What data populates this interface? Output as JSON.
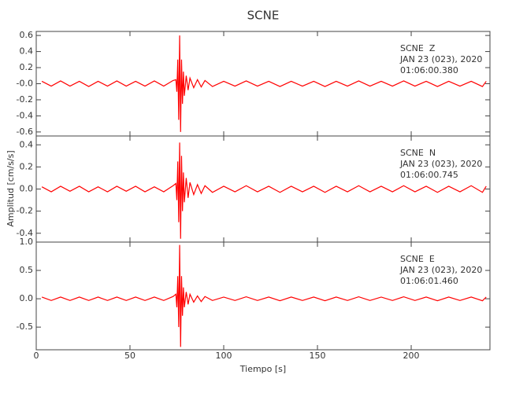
{
  "title": "SCNE",
  "x_label": "Tiempo [s]",
  "y_label": "Amplitud [cm/s/s]",
  "chart_data": [
    {
      "type": "line",
      "annotation": [
        "SCNE  Z",
        "JAN 23 (023), 2020",
        "01:06:00.380"
      ],
      "xlim": [
        0,
        242
      ],
      "xticks": [
        0,
        50,
        100,
        150,
        200
      ],
      "ylim": [
        -0.65,
        0.65
      ],
      "yticks": [
        -0.6,
        -0.4,
        -0.2,
        {
          "value": 0,
          "label": "-0.0"
        },
        0.2,
        0.4,
        0.6
      ],
      "series": [
        {
          "color": "#ff0000",
          "x": [
            3,
            8,
            13,
            18,
            23,
            28,
            33,
            38,
            43,
            48,
            53,
            58,
            63,
            68,
            73,
            74.5,
            75,
            75.5,
            76,
            76.5,
            77,
            77.5,
            78,
            78.5,
            79,
            80,
            81,
            82,
            84,
            86,
            88,
            90,
            94,
            100,
            106,
            112,
            118,
            124,
            130,
            136,
            142,
            148,
            154,
            160,
            166,
            172,
            178,
            184,
            190,
            196,
            202,
            208,
            214,
            220,
            226,
            232,
            238,
            240
          ],
          "values": [
            0.03,
            -0.03,
            0.035,
            -0.03,
            0.03,
            -0.035,
            0.03,
            -0.03,
            0.035,
            -0.03,
            0.03,
            -0.03,
            0.035,
            -0.03,
            0.04,
            0.05,
            -0.1,
            0.3,
            -0.45,
            0.6,
            -0.6,
            0.3,
            -0.25,
            0.15,
            -0.15,
            0.1,
            -0.08,
            0.07,
            -0.05,
            0.05,
            -0.04,
            0.04,
            -0.035,
            0.03,
            -0.03,
            0.035,
            -0.03,
            0.03,
            -0.035,
            0.03,
            -0.03,
            0.03,
            -0.035,
            0.03,
            -0.03,
            0.035,
            -0.03,
            0.03,
            -0.03,
            0.035,
            -0.03,
            0.03,
            -0.035,
            0.03,
            -0.03,
            0.03,
            -0.035,
            0.03
          ]
        }
      ]
    },
    {
      "type": "line",
      "annotation": [
        "SCNE  N",
        "JAN 23 (023), 2020",
        "01:06:00.745"
      ],
      "xlim": [
        0,
        242
      ],
      "xticks": [
        0,
        50,
        100,
        150,
        200
      ],
      "ylim": [
        -0.48,
        0.48
      ],
      "yticks": [
        -0.4,
        -0.2,
        {
          "value": 0,
          "label": "0.0"
        },
        0.2,
        0.4
      ],
      "series": [
        {
          "color": "#ff0000",
          "x": [
            3,
            8,
            13,
            18,
            23,
            28,
            33,
            38,
            43,
            48,
            53,
            58,
            63,
            68,
            73,
            74.5,
            75,
            75.5,
            76,
            76.5,
            77,
            77.5,
            78,
            78.5,
            79,
            80,
            81,
            82,
            84,
            86,
            88,
            90,
            94,
            100,
            106,
            112,
            118,
            124,
            130,
            136,
            142,
            148,
            154,
            160,
            166,
            172,
            178,
            184,
            190,
            196,
            202,
            208,
            214,
            220,
            226,
            232,
            238,
            240
          ],
          "values": [
            0.02,
            -0.025,
            0.025,
            -0.02,
            0.025,
            -0.025,
            0.02,
            -0.025,
            0.025,
            -0.02,
            0.025,
            -0.025,
            0.02,
            -0.025,
            0.03,
            0.05,
            -0.1,
            0.25,
            -0.3,
            0.42,
            -0.45,
            0.3,
            -0.2,
            0.15,
            -0.12,
            0.1,
            -0.08,
            0.06,
            -0.05,
            0.04,
            -0.04,
            0.03,
            -0.03,
            0.025,
            -0.025,
            0.03,
            -0.025,
            0.025,
            -0.03,
            0.025,
            -0.025,
            0.025,
            -0.03,
            0.025,
            -0.025,
            0.03,
            -0.025,
            0.025,
            -0.025,
            0.03,
            -0.025,
            0.025,
            -0.03,
            0.025,
            -0.025,
            0.03,
            -0.03,
            0.025
          ]
        }
      ]
    },
    {
      "type": "line",
      "annotation": [
        "SCNE  E",
        "JAN 23 (023), 2020",
        "01:06:01.460"
      ],
      "xlim": [
        0,
        242
      ],
      "xticks": [
        0,
        50,
        100,
        150,
        200
      ],
      "ylim": [
        -0.9,
        1.0
      ],
      "yticks": [
        -0.5,
        {
          "value": 0,
          "label": "0.0"
        },
        0.5,
        {
          "value": 1,
          "label": "1.0"
        }
      ],
      "series": [
        {
          "color": "#ff0000",
          "x": [
            3,
            8,
            13,
            18,
            23,
            28,
            33,
            38,
            43,
            48,
            53,
            58,
            63,
            68,
            73,
            74.5,
            75,
            75.5,
            76,
            76.5,
            77,
            77.5,
            78,
            78.5,
            79,
            80,
            81,
            82,
            84,
            86,
            88,
            90,
            94,
            100,
            106,
            112,
            118,
            124,
            130,
            136,
            142,
            148,
            154,
            160,
            166,
            172,
            178,
            184,
            190,
            196,
            202,
            208,
            214,
            220,
            226,
            232,
            238,
            240
          ],
          "values": [
            0.03,
            -0.03,
            0.03,
            -0.03,
            0.03,
            -0.03,
            0.03,
            -0.03,
            0.03,
            -0.03,
            0.03,
            -0.03,
            0.03,
            -0.03,
            0.04,
            0.08,
            -0.15,
            0.4,
            -0.5,
            0.95,
            -0.85,
            0.4,
            -0.3,
            0.2,
            -0.15,
            0.12,
            -0.1,
            0.08,
            -0.06,
            0.05,
            -0.05,
            0.04,
            -0.03,
            0.03,
            -0.03,
            0.035,
            -0.03,
            0.03,
            -0.035,
            0.03,
            -0.03,
            0.03,
            -0.035,
            0.03,
            -0.03,
            0.035,
            -0.03,
            0.03,
            -0.03,
            0.035,
            -0.03,
            0.03,
            -0.035,
            0.03,
            -0.03,
            0.03,
            -0.035,
            0.03
          ]
        }
      ]
    }
  ]
}
